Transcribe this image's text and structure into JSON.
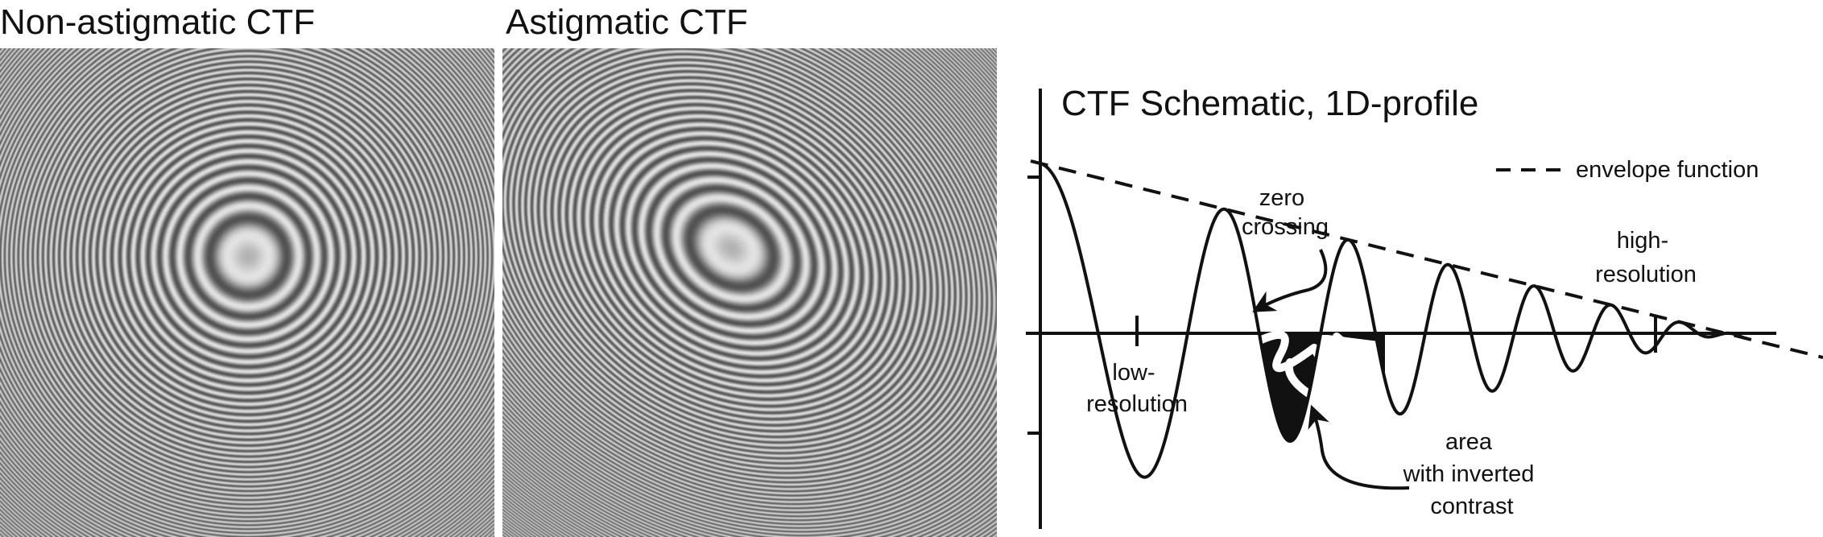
{
  "panels": {
    "left": {
      "title": "Non-astigmatic CTF",
      "astigmatic": false
    },
    "right": {
      "title": "Astigmatic CTF",
      "astigmatic": true
    }
  },
  "schematic": {
    "title": "CTF Schematic, 1D-profile",
    "legend": {
      "label": "envelope function",
      "line_style": "dashed"
    },
    "annotations": {
      "zero_crossing": [
        "zero",
        "crossing"
      ],
      "low_resolution": [
        "low-",
        "resolution"
      ],
      "high_resolution": [
        "high-",
        "resolution"
      ],
      "inverted_contrast": [
        "area",
        "with inverted",
        "contrast"
      ]
    }
  },
  "colors": {
    "ink": "#111111",
    "ring_light": "#d4d4d4",
    "ring_dark": "#6a6a6a"
  }
}
